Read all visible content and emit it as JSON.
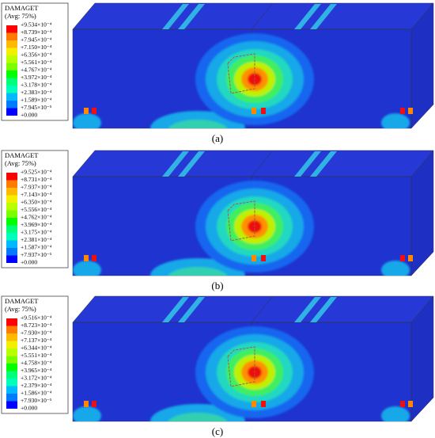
{
  "legend_colors": [
    "#ff0000",
    "#ff7b00",
    "#ffb900",
    "#f0f000",
    "#b9ff00",
    "#7bff00",
    "#00ff00",
    "#00ff7b",
    "#00ffb9",
    "#00b9ff",
    "#007bff",
    "#0000ff"
  ],
  "panels": [
    {
      "legend": {
        "title": "DAMAGET",
        "subtitle": "(Avg: 75%)",
        "labels": [
          "+9.534×10⁻⁴",
          "+8.739×10⁻⁴",
          "+7.945×10⁻⁴",
          "+7.150×10⁻⁴",
          "+6.356×10⁻⁴",
          "+5.561×10⁻⁴",
          "+4.767×10⁻⁴",
          "+3.972×10⁻⁴",
          "+3.178×10⁻⁴",
          "+2.383×10⁻⁴",
          "+1.589×10⁻⁴",
          "+7.945×10⁻⁵",
          "+0.000"
        ]
      },
      "caption": "(a)"
    },
    {
      "legend": {
        "title": "DAMAGET",
        "subtitle": "(Avg: 75%)",
        "labels": [
          "+9.525×10⁻⁴",
          "+8.731×10⁻⁴",
          "+7.937×10⁻⁴",
          "+7.143×10⁻⁴",
          "+6.350×10⁻⁴",
          "+5.556×10⁻⁴",
          "+4.762×10⁻⁴",
          "+3.969×10⁻⁴",
          "+3.175×10⁻⁴",
          "+2.381×10⁻⁴",
          "+1.587×10⁻⁴",
          "+7.937×10⁻⁵",
          "+0.000"
        ]
      },
      "caption": "(b)"
    },
    {
      "legend": {
        "title": "DAMAGET",
        "subtitle": "(Avg: 75%)",
        "labels": [
          "+9.516×10⁻⁴",
          "+8.723×10⁻⁴",
          "+7.930×10⁻⁴",
          "+7.137×10⁻⁴",
          "+6.344×10⁻⁴",
          "+5.551×10⁻⁴",
          "+4.758×10⁻⁴",
          "+3.965×10⁻⁴",
          "+3.172×10⁻⁴",
          "+2.379×10⁻⁴",
          "+1.586×10⁻⁴",
          "+7.930×10⁻⁵",
          "+0.000"
        ]
      },
      "caption": "(c)"
    }
  ]
}
